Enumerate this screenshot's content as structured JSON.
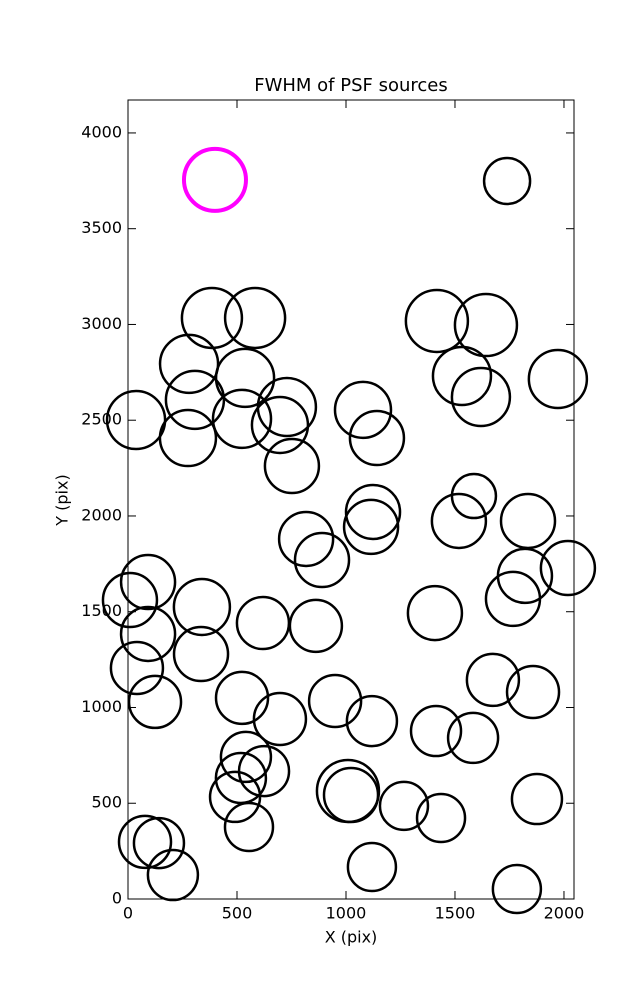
{
  "chart_data": {
    "type": "scatter",
    "title": "FWHM of PSF sources",
    "xlabel": "X (pix)",
    "ylabel": "Y (pix)",
    "xlim": [
      0,
      2046
    ],
    "ylim": [
      0,
      4172
    ],
    "xticks": [
      0,
      500,
      1000,
      1500,
      2000
    ],
    "yticks": [
      0,
      500,
      1000,
      1500,
      2000,
      2500,
      3000,
      3500,
      4000
    ],
    "series": [
      {
        "color": "#000000",
        "x": [
          1739,
          385,
          583,
          280,
          537,
          307,
          37,
          275,
          523,
          729,
          697,
          752,
          1078,
          1142,
          1417,
          1642,
          1532,
          1619,
          1972,
          1587,
          1518,
          1835,
          1124,
          1115,
          817,
          890,
          92,
          2018,
          1821,
          1766,
          9,
          92,
          41,
          124,
          339,
          335,
          619,
          862,
          1408,
          1674,
          1858,
          950,
          1119,
          523,
          697,
          1413,
          1583,
          541,
          624,
          518,
          491,
          555,
          1009,
          1023,
          1266,
          1436,
          1876,
          78,
          142,
          206,
          1119,
          1784
        ],
        "values": [
          3749,
          3034,
          3034,
          2794,
          2721,
          2606,
          2501,
          2407,
          2507,
          2569,
          2475,
          2261,
          2554,
          2407,
          3018,
          2997,
          2731,
          2621,
          2715,
          2104,
          1974,
          1974,
          2021,
          1943,
          1880,
          1770,
          1655,
          1728,
          1687,
          1567,
          1561,
          1384,
          1206,
          1029,
          1525,
          1279,
          1441,
          1426,
          1493,
          1144,
          1081,
          1034,
          929,
          1050,
          940,
          877,
          841,
          742,
          668,
          632,
          533,
          376,
          564,
          543,
          486,
          423,
          522,
          298,
          292,
          125,
          167,
          52
        ],
        "sizes": [
          23,
          30,
          30,
          29,
          29,
          29,
          29,
          28,
          29,
          29,
          28,
          27,
          28,
          27,
          31,
          31,
          29,
          29,
          29,
          22,
          27,
          27,
          27,
          27,
          27,
          27,
          27,
          27,
          27,
          27,
          27,
          27,
          26,
          26,
          28,
          27,
          26,
          26,
          27,
          26,
          26,
          26,
          25,
          26,
          26,
          25,
          25,
          25,
          25,
          25,
          25,
          24,
          31,
          27,
          24,
          24,
          25,
          26,
          25,
          25,
          24,
          24
        ]
      },
      {
        "color": "#ff00ff",
        "x": [
          399
        ],
        "values": [
          3755
        ],
        "sizes": [
          31
        ]
      }
    ]
  }
}
